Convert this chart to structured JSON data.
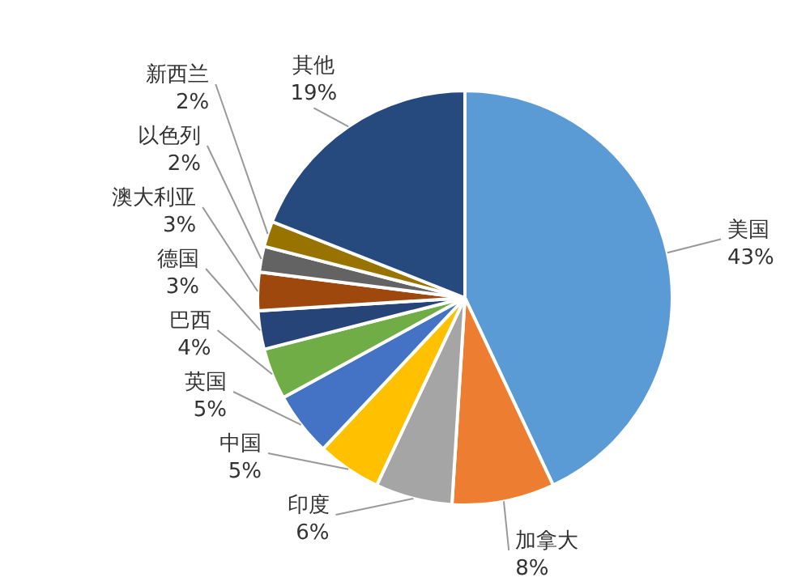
{
  "chart_data": {
    "type": "pie",
    "categories": [
      "美国",
      "加拿大",
      "印度",
      "中国",
      "英国",
      "巴西",
      "德国",
      "澳大利亚",
      "以色列",
      "新西兰",
      "其他"
    ],
    "values": [
      43,
      8,
      6,
      5,
      5,
      4,
      3,
      3,
      2,
      2,
      19
    ],
    "value_labels": [
      "43%",
      "8%",
      "6%",
      "5%",
      "5%",
      "4%",
      "3%",
      "3%",
      "2%",
      "2%",
      "19%"
    ],
    "colors": [
      "#5b9bd5",
      "#ed7d31",
      "#a5a5a5",
      "#ffc000",
      "#4472c4",
      "#70ad47",
      "#264478",
      "#9e480e",
      "#636363",
      "#997300",
      "#264a7e"
    ]
  }
}
